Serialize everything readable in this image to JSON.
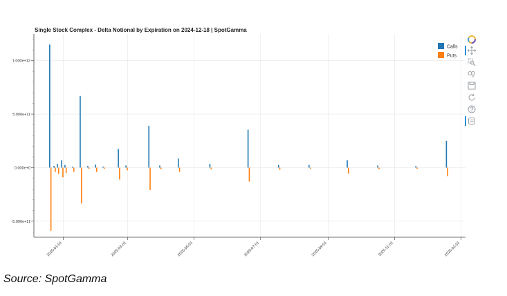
{
  "title": "Single Stock Complex - Delta Notional by Expiration on 2024-12-18 | SpotGamma",
  "source": "Source: SpotGamma",
  "colors": {
    "calls": "#1f77b4",
    "puts": "#ff7f0e",
    "toolbar_active": "#2a8fd6"
  },
  "toolbar": {
    "items": [
      {
        "name": "bokeh-logo-icon"
      },
      {
        "name": "pan-icon",
        "active": true
      },
      {
        "name": "box-zoom-icon"
      },
      {
        "name": "wheel-zoom-icon"
      },
      {
        "name": "save-icon"
      },
      {
        "name": "reset-icon"
      },
      {
        "name": "help-icon"
      },
      {
        "name": "hover-icon",
        "active": true
      }
    ]
  },
  "chart_data": {
    "type": "bar",
    "title": "Single Stock Complex - Delta Notional by Expiration on 2024-12-18 | SpotGamma",
    "xlabel": "",
    "ylabel": "",
    "x_axis": {
      "type": "datetime",
      "range": [
        "2024-12-05",
        "2026-01-05"
      ],
      "ticks": [
        "2025-01-01",
        "2025-03-01",
        "2025-05-01",
        "2025-07-01",
        "2025-09-01",
        "2025-11-01",
        "2026-01-01"
      ]
    },
    "y_axis": {
      "range": [
        -650000000000,
        1250000000000
      ],
      "ticks": [
        -500000000000,
        0,
        500000000000,
        1000000000000
      ],
      "tick_labels": [
        "-5.000e+11",
        "0.000e+0",
        "5.000e+11",
        "1.000e+12"
      ]
    },
    "grid": true,
    "legend": {
      "position": "top-right",
      "entries": [
        "Calls",
        "Puts"
      ]
    },
    "series": [
      {
        "name": "Calls",
        "x": [
          "2024-12-20",
          "2024-12-24",
          "2024-12-27",
          "2024-12-31",
          "2025-01-03",
          "2025-01-10",
          "2025-01-17",
          "2025-01-24",
          "2025-01-31",
          "2025-02-07",
          "2025-02-21",
          "2025-02-28",
          "2025-03-21",
          "2025-03-31",
          "2025-04-17",
          "2025-05-16",
          "2025-06-20",
          "2025-07-18",
          "2025-08-15",
          "2025-09-19",
          "2025-10-17",
          "2025-11-21",
          "2025-12-19"
        ],
        "values": [
          1150000000000,
          15000000000,
          35000000000,
          70000000000,
          25000000000,
          10000000000,
          670000000000,
          15000000000,
          30000000000,
          10000000000,
          175000000000,
          20000000000,
          390000000000,
          20000000000,
          85000000000,
          35000000000,
          355000000000,
          25000000000,
          25000000000,
          70000000000,
          20000000000,
          15000000000,
          250000000000
        ]
      },
      {
        "name": "Puts",
        "x": [
          "2024-12-20",
          "2024-12-24",
          "2024-12-27",
          "2024-12-31",
          "2025-01-03",
          "2025-01-10",
          "2025-01-17",
          "2025-01-24",
          "2025-01-31",
          "2025-02-07",
          "2025-02-21",
          "2025-02-28",
          "2025-03-21",
          "2025-03-31",
          "2025-04-17",
          "2025-05-16",
          "2025-06-20",
          "2025-07-18",
          "2025-08-15",
          "2025-09-19",
          "2025-10-17",
          "2025-11-21",
          "2025-12-19"
        ],
        "values": [
          -590000000000,
          -40000000000,
          -60000000000,
          -90000000000,
          -50000000000,
          -40000000000,
          -335000000000,
          -10000000000,
          -40000000000,
          -10000000000,
          -110000000000,
          -25000000000,
          -210000000000,
          -15000000000,
          -40000000000,
          -15000000000,
          -130000000000,
          -20000000000,
          -10000000000,
          -55000000000,
          -15000000000,
          -10000000000,
          -80000000000
        ]
      }
    ]
  }
}
